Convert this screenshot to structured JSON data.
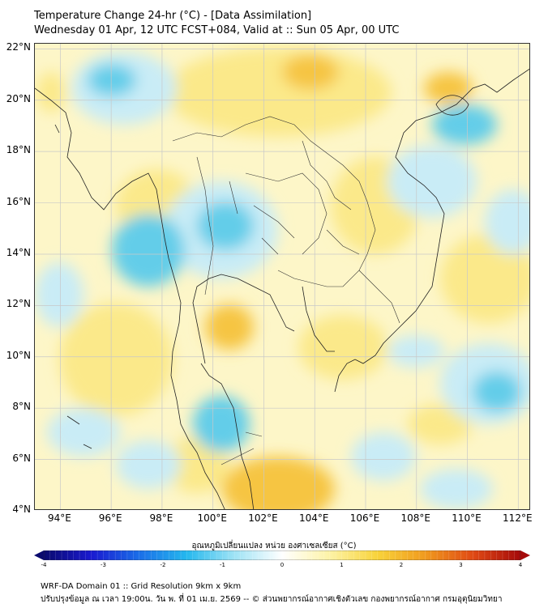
{
  "header": {
    "title_line1": "Temperature Change 24-hr (°C) - [Data Assimilation]",
    "title_line2": "Wednesday 01 Apr, 12 UTC FCST+084, Valid at :: Sun 05 Apr, 00 UTC"
  },
  "map": {
    "lat_labels": [
      "22°N",
      "20°N",
      "18°N",
      "16°N",
      "14°N",
      "12°N",
      "10°N",
      "8°N",
      "6°N",
      "4°N"
    ],
    "lon_labels": [
      "94°E",
      "96°E",
      "98°E",
      "100°E",
      "102°E",
      "104°E",
      "106°E",
      "108°E",
      "110°E",
      "112°E"
    ],
    "extent": {
      "lon_min": 93.0,
      "lon_max": 112.5,
      "lat_min": 4.0,
      "lat_max": 22.2
    },
    "grid_lines": true,
    "colors": {
      "warm_yellow": "#fbe98a",
      "warm_orange": "#f6c543",
      "cool_light": "#c9ecf6",
      "cool_cyan": "#64cde9",
      "land_border": "#222222",
      "grid": "#c8c8c8"
    }
  },
  "colorbar": {
    "label": "อุณหภูมิเปลี่ยนแปลง หน่วย องศาเซลเซียส (°C)",
    "ticks": [
      "-4",
      "-3",
      "-2",
      "-1",
      "0",
      "1",
      "2",
      "3",
      "4"
    ],
    "range": [
      -4,
      4
    ],
    "colors": [
      "#0a0a6e",
      "#1a1ad0",
      "#1a6ee8",
      "#25b8ee",
      "#9fe3f5",
      "#ffffff",
      "#fdf3a6",
      "#f8d33a",
      "#f09a1e",
      "#e04a14",
      "#a50a0a"
    ]
  },
  "footer": {
    "line1": "WRF-DA Domain 01 :: Grid Resolution 9km x 9km",
    "line2": "ปรับปรุงข้อมูล ณ เวลา 19:00น. วัน พ. ที่ 01 เม.ย. 2569 -- © ส่วนพยากรณ์อากาศเชิงตัวเลข กองพยากรณ์อากาศ กรมอุตุนิยมวิทยา"
  }
}
